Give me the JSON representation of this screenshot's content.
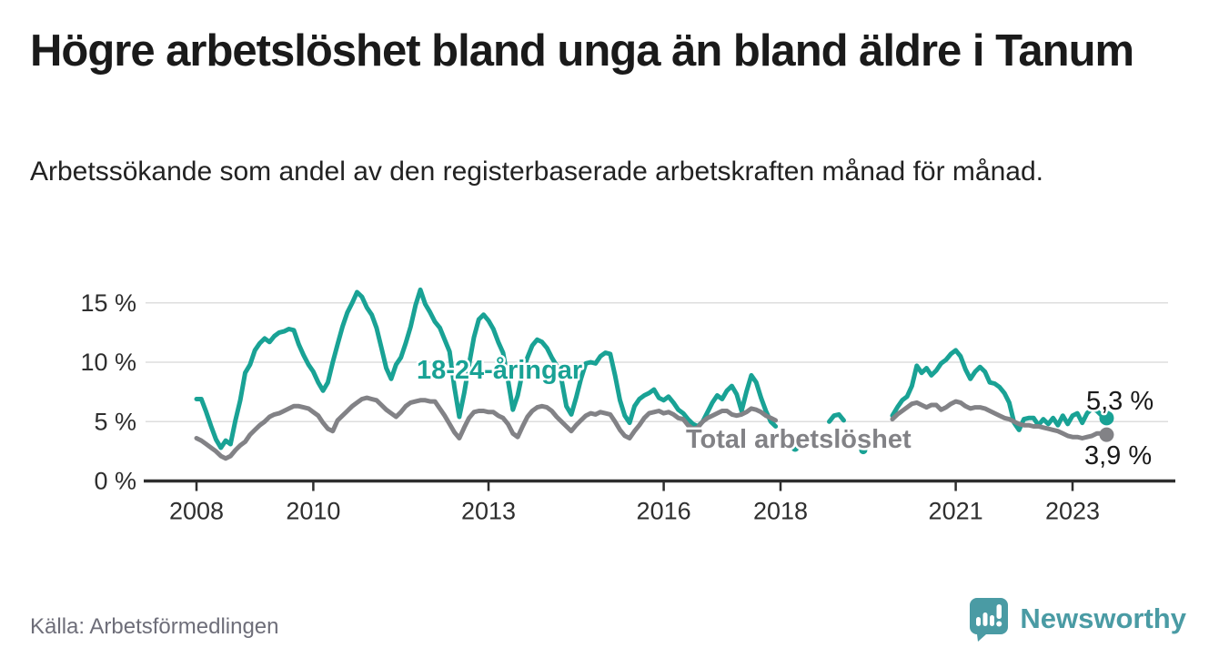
{
  "title": "Högre arbetslöshet bland unga än bland äldre i Tanum",
  "subtitle": "Arbetssökande som andel av den registerbaserade arbetskraften månad för månad.",
  "source": "Källa: Arbetsförmedlingen",
  "branding": {
    "name": "Newsworthy",
    "color": "#4a9ba4"
  },
  "colors": {
    "youth_line": "#19a295",
    "total_line": "#828286",
    "grid": "#dedede",
    "axis": "#2e2e2e",
    "tick_text": "#2e2e2e",
    "value_label_text": "#1a1a1a",
    "title_text": "#1a1a1a",
    "source_text": "#6e6e79"
  },
  "chart_data": {
    "type": "line",
    "title": "Högre arbetslöshet bland unga än bland äldre i Tanum",
    "subtitle": "Arbetssökande som andel av den registerbaserade arbetskraften månad för månad.",
    "unit": "percent of registered labour force",
    "frequency": "monthly",
    "x_start": "2008-01",
    "x_end": "2023-08",
    "x_tick_labels": [
      "2008",
      "2010",
      "2013",
      "2016",
      "2018",
      "2021",
      "2023"
    ],
    "x_tick_indices": [
      0,
      24,
      60,
      96,
      120,
      156,
      180
    ],
    "y_tick_labels": [
      "0 %",
      "5 %",
      "10 %",
      "15 %"
    ],
    "y_tick_values": [
      0,
      5,
      10,
      15
    ],
    "ylim": [
      0,
      17
    ],
    "grid": "horizontal-only",
    "legend": "inline-labels",
    "data_gap_note": "both series have missing months between 2018 and 2020 shown as a gap with a few isolated dots",
    "series": [
      {
        "name": "18-24-åringar",
        "color": "#19a295",
        "end_label": "5,3 %",
        "end_value": 5.3,
        "values": [
          6.9,
          6.9,
          5.8,
          4.6,
          3.5,
          2.8,
          3.4,
          3.1,
          5.1,
          6.8,
          9.1,
          9.8,
          11.0,
          11.6,
          12.0,
          11.7,
          12.2,
          12.5,
          12.6,
          12.8,
          12.7,
          11.5,
          10.6,
          9.8,
          9.2,
          8.3,
          7.6,
          8.3,
          10.0,
          11.5,
          13.0,
          14.2,
          15.0,
          15.9,
          15.5,
          14.6,
          14.0,
          12.9,
          11.2,
          9.5,
          8.6,
          9.8,
          10.4,
          11.6,
          13.0,
          14.8,
          16.1,
          14.9,
          14.2,
          13.4,
          12.9,
          11.9,
          10.9,
          7.9,
          5.4,
          7.4,
          9.8,
          12.1,
          13.6,
          14.0,
          13.5,
          12.8,
          11.7,
          10.8,
          8.5,
          6.0,
          7.2,
          9.2,
          10.4,
          11.4,
          11.9,
          11.7,
          11.2,
          10.4,
          9.7,
          8.5,
          6.3,
          5.6,
          7.0,
          8.6,
          9.9,
          10.0,
          9.9,
          10.5,
          10.8,
          10.7,
          8.9,
          6.8,
          5.5,
          4.9,
          6.3,
          6.9,
          7.2,
          7.4,
          7.7,
          7.0,
          6.8,
          7.1,
          6.6,
          6.0,
          5.7,
          5.2,
          4.8,
          4.6,
          5.0,
          5.8,
          6.6,
          7.2,
          6.9,
          7.6,
          8.0,
          7.3,
          5.9,
          7.5,
          8.9,
          8.3,
          7.0,
          5.9,
          5.0,
          4.6,
          null,
          null,
          null,
          2.8,
          null,
          null,
          null,
          null,
          null,
          null,
          5.0,
          5.5,
          5.6,
          5.1,
          null,
          null,
          null,
          2.6,
          null,
          null,
          null,
          null,
          null,
          5.5,
          6.2,
          6.8,
          7.1,
          8.0,
          9.7,
          9.1,
          9.5,
          8.9,
          9.3,
          9.9,
          10.2,
          10.7,
          11.0,
          10.5,
          9.4,
          8.6,
          9.2,
          9.6,
          9.2,
          8.3,
          8.2,
          7.9,
          7.4,
          6.6,
          4.9,
          4.3,
          5.2,
          5.3,
          5.3,
          4.7,
          5.2,
          4.8,
          5.3,
          4.7,
          5.5,
          4.8,
          5.5,
          5.7,
          4.9,
          5.7,
          6.1,
          5.9,
          5.5,
          5.3
        ]
      },
      {
        "name": "Total arbetslöshet",
        "color": "#828286",
        "end_label": "3,9 %",
        "end_value": 3.9,
        "values": [
          3.6,
          3.4,
          3.1,
          2.8,
          2.5,
          2.1,
          1.9,
          2.1,
          2.6,
          3.0,
          3.3,
          3.9,
          4.3,
          4.7,
          5.0,
          5.4,
          5.6,
          5.7,
          5.9,
          6.1,
          6.3,
          6.3,
          6.2,
          6.1,
          5.8,
          5.5,
          4.9,
          4.4,
          4.2,
          5.1,
          5.5,
          5.9,
          6.3,
          6.6,
          6.9,
          7.0,
          6.9,
          6.8,
          6.4,
          6.0,
          5.7,
          5.4,
          5.8,
          6.3,
          6.6,
          6.7,
          6.8,
          6.8,
          6.7,
          6.7,
          6.1,
          5.5,
          4.8,
          4.1,
          3.6,
          4.5,
          5.3,
          5.8,
          5.9,
          5.9,
          5.8,
          5.8,
          5.5,
          5.3,
          4.8,
          4.0,
          3.7,
          4.6,
          5.4,
          5.9,
          6.2,
          6.3,
          6.2,
          5.9,
          5.4,
          5.0,
          4.6,
          4.2,
          4.7,
          5.1,
          5.5,
          5.7,
          5.6,
          5.8,
          5.7,
          5.6,
          5.0,
          4.3,
          3.8,
          3.6,
          4.2,
          4.7,
          5.3,
          5.7,
          5.8,
          5.9,
          5.7,
          5.8,
          5.6,
          5.3,
          5.2,
          4.7,
          4.4,
          4.5,
          5.0,
          5.3,
          5.5,
          5.7,
          5.9,
          5.9,
          5.6,
          5.5,
          5.6,
          5.8,
          6.1,
          6.0,
          5.8,
          5.5,
          5.3,
          5.1,
          null,
          null,
          null,
          null,
          null,
          null,
          null,
          null,
          null,
          null,
          null,
          null,
          null,
          null,
          null,
          null,
          null,
          null,
          null,
          null,
          null,
          null,
          null,
          5.2,
          5.6,
          5.9,
          6.2,
          6.5,
          6.6,
          6.4,
          6.2,
          6.4,
          6.4,
          6.0,
          6.2,
          6.5,
          6.7,
          6.6,
          6.3,
          6.1,
          6.2,
          6.2,
          6.1,
          5.9,
          5.7,
          5.5,
          5.3,
          5.2,
          5.0,
          4.8,
          4.7,
          4.7,
          4.6,
          4.6,
          4.5,
          4.4,
          4.3,
          4.2,
          4.0,
          3.8,
          3.7,
          3.7,
          3.6,
          3.7,
          3.8,
          4.0,
          4.0,
          3.9
        ]
      }
    ]
  }
}
